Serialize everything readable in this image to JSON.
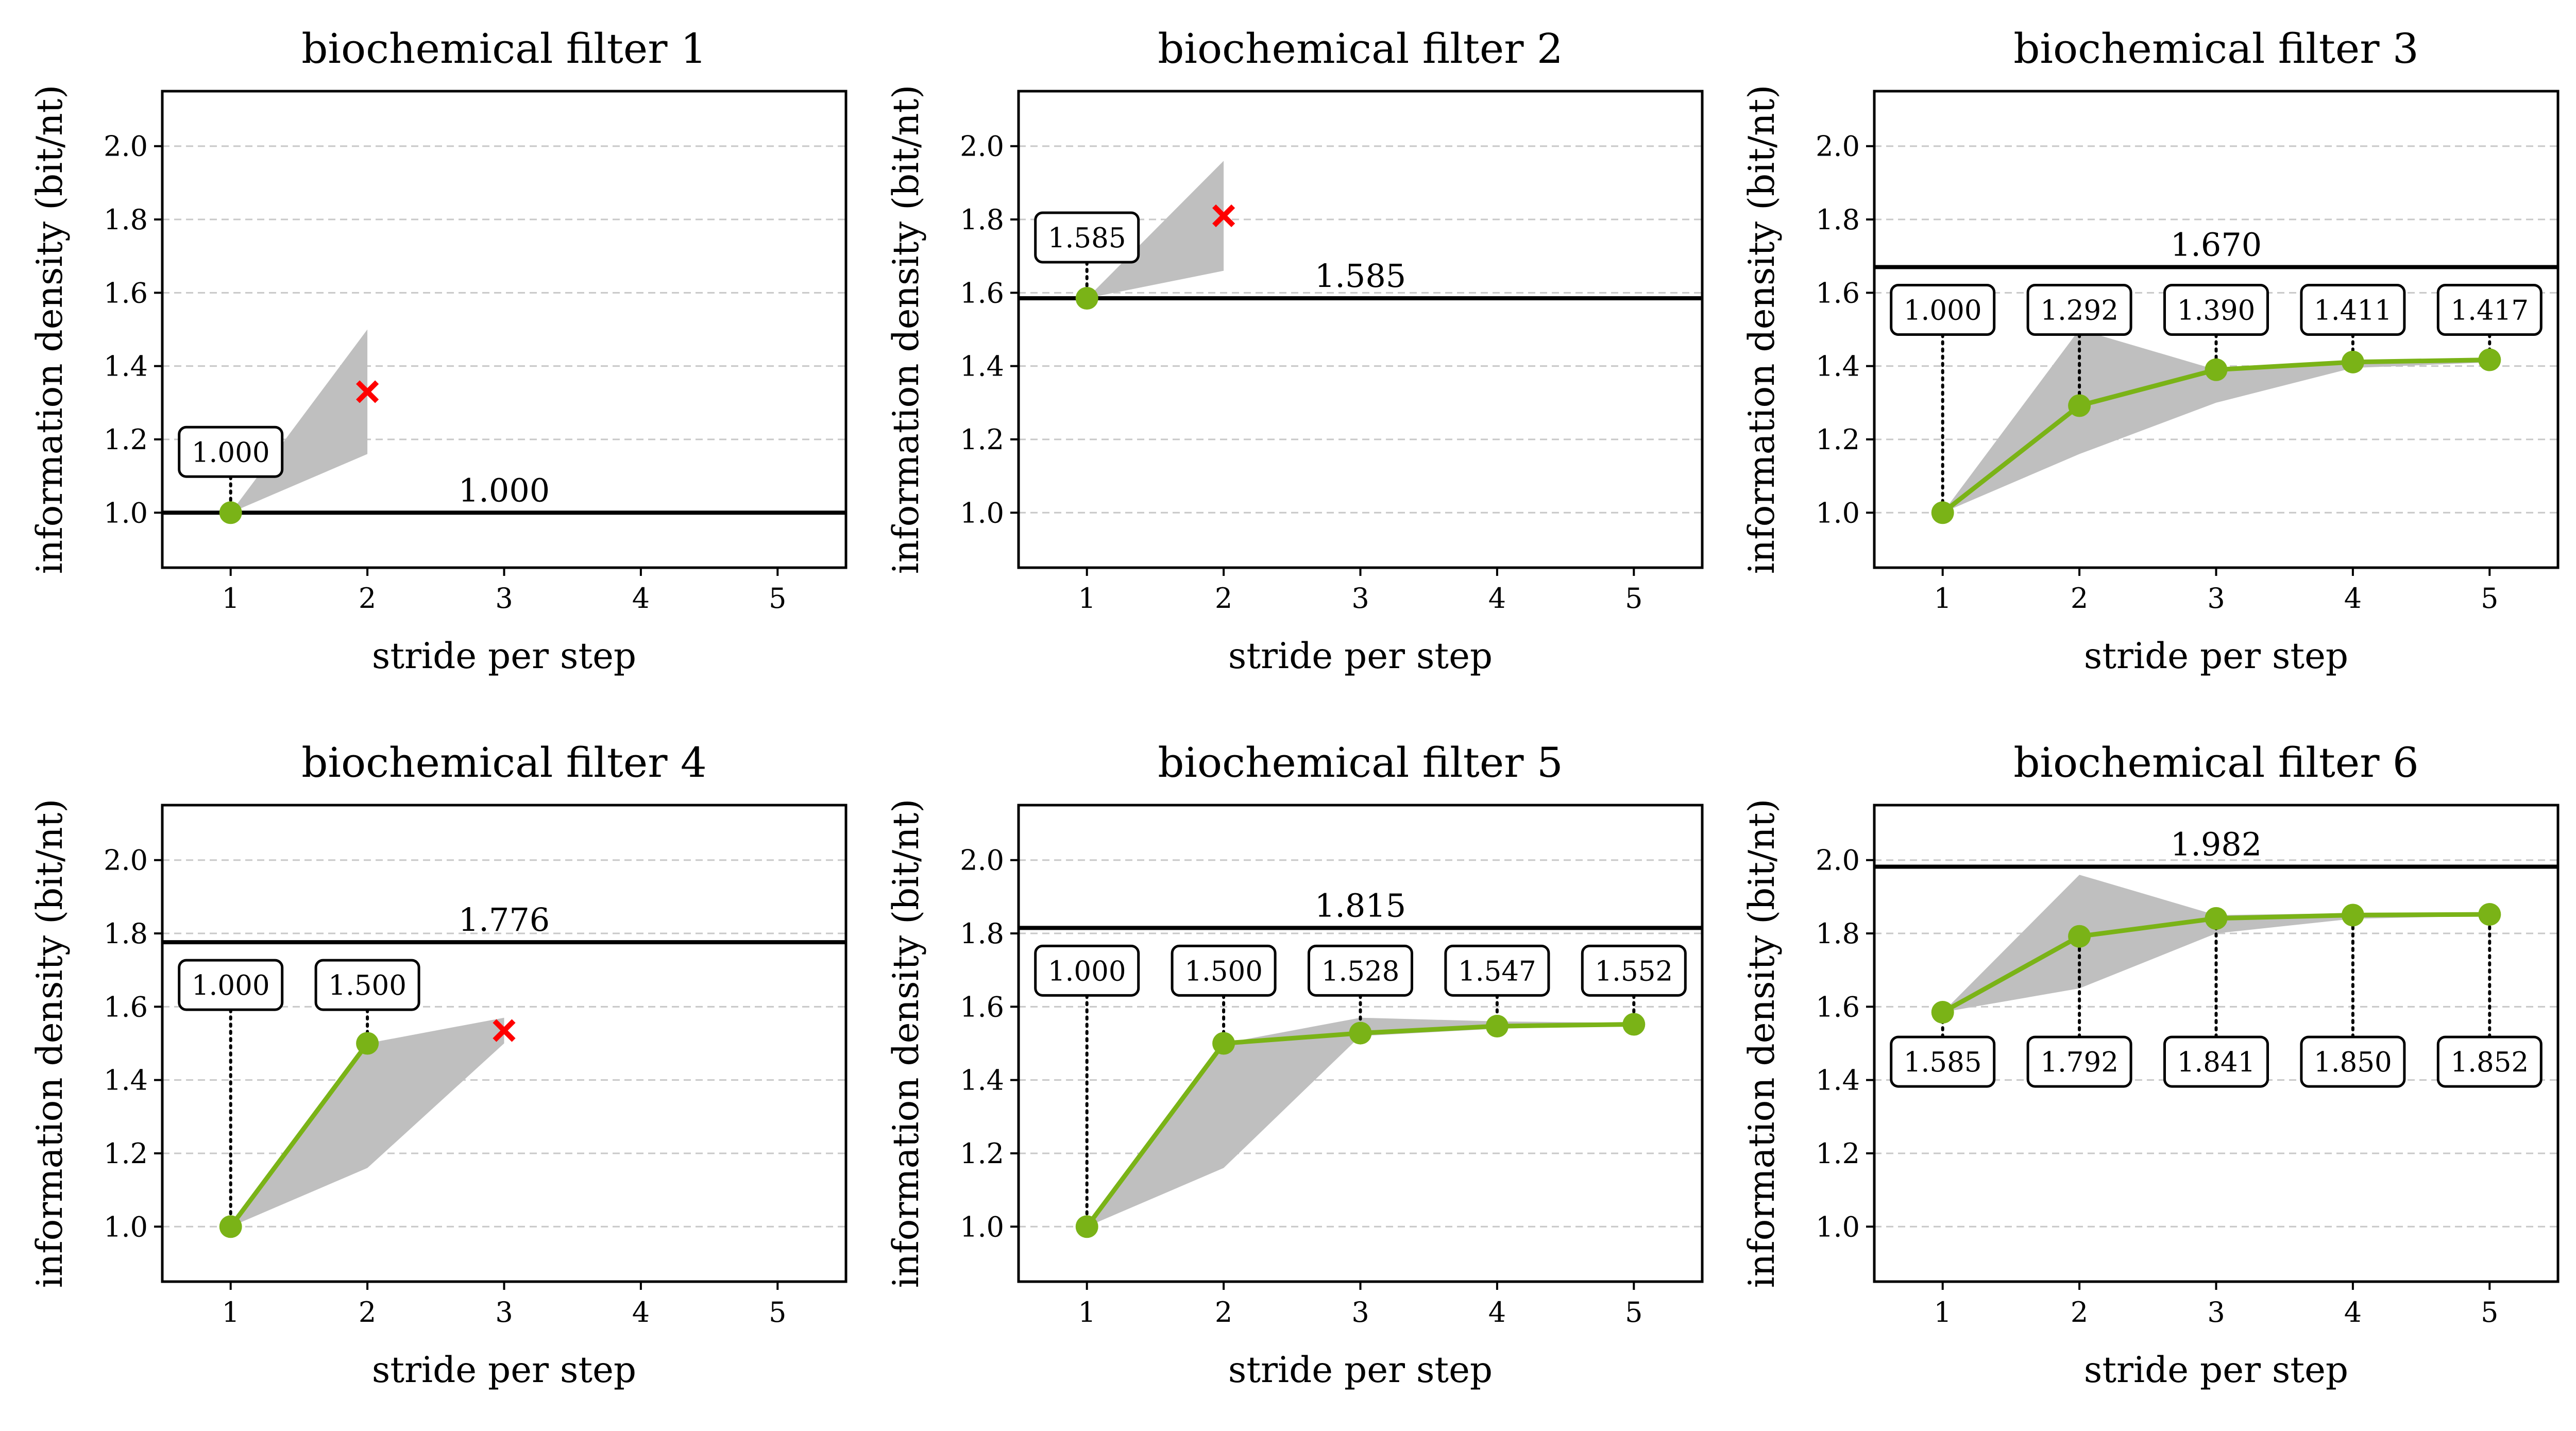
{
  "chart_data": [
    {
      "type": "line",
      "title": "biochemical filter 1",
      "xlabel": "stride per step",
      "ylabel": "information density (bit/nt)",
      "xlim": [
        0.5,
        5.5
      ],
      "ylim": [
        0.85,
        2.15
      ],
      "xticks": [
        1,
        2,
        3,
        4,
        5
      ],
      "yticks": [
        1.0,
        1.2,
        1.4,
        1.6,
        1.8,
        2.0
      ],
      "ytick_labels": [
        "1.0",
        "1.2",
        "1.4",
        "1.6",
        "1.8",
        "2.0"
      ],
      "grid": "horizontal dashed",
      "reference_line": {
        "y": 1.0,
        "label": "1.000"
      },
      "points": [
        {
          "x": 1,
          "y": 1.0,
          "label": "1.000",
          "label_pos": "above"
        }
      ],
      "band": [
        {
          "x": 1,
          "low": 1.0,
          "high": 1.0
        },
        {
          "x": 2,
          "low": 1.16,
          "high": 1.5
        }
      ],
      "rejected": [
        {
          "x": 2,
          "y": 1.33
        }
      ]
    },
    {
      "type": "line",
      "title": "biochemical filter 2",
      "xlabel": "stride per step",
      "ylabel": "information density (bit/nt)",
      "xlim": [
        0.5,
        5.5
      ],
      "ylim": [
        0.85,
        2.15
      ],
      "xticks": [
        1,
        2,
        3,
        4,
        5
      ],
      "yticks": [
        1.0,
        1.2,
        1.4,
        1.6,
        1.8,
        2.0
      ],
      "ytick_labels": [
        "1.0",
        "1.2",
        "1.4",
        "1.6",
        "1.8",
        "2.0"
      ],
      "grid": "horizontal dashed",
      "reference_line": {
        "y": 1.585,
        "label": "1.585"
      },
      "points": [
        {
          "x": 1,
          "y": 1.585,
          "label": "1.585",
          "label_pos": "above"
        }
      ],
      "band": [
        {
          "x": 1,
          "low": 1.585,
          "high": 1.585
        },
        {
          "x": 2,
          "low": 1.66,
          "high": 1.96
        }
      ],
      "rejected": [
        {
          "x": 2,
          "y": 1.81
        }
      ]
    },
    {
      "type": "line",
      "title": "biochemical filter 3",
      "xlabel": "stride per step",
      "ylabel": "information density (bit/nt)",
      "xlim": [
        0.5,
        5.5
      ],
      "ylim": [
        0.85,
        2.15
      ],
      "xticks": [
        1,
        2,
        3,
        4,
        5
      ],
      "yticks": [
        1.0,
        1.2,
        1.4,
        1.6,
        1.8,
        2.0
      ],
      "ytick_labels": [
        "1.0",
        "1.2",
        "1.4",
        "1.6",
        "1.8",
        "2.0"
      ],
      "grid": "horizontal dashed",
      "reference_line": {
        "y": 1.67,
        "label": "1.670"
      },
      "points": [
        {
          "x": 1,
          "y": 1.0,
          "label": "1.000",
          "label_pos": "above"
        },
        {
          "x": 2,
          "y": 1.292,
          "label": "1.292",
          "label_pos": "above"
        },
        {
          "x": 3,
          "y": 1.39,
          "label": "1.390",
          "label_pos": "above"
        },
        {
          "x": 4,
          "y": 1.411,
          "label": "1.411",
          "label_pos": "above"
        },
        {
          "x": 5,
          "y": 1.417,
          "label": "1.417",
          "label_pos": "above"
        }
      ],
      "band": [
        {
          "x": 1,
          "low": 1.0,
          "high": 1.0
        },
        {
          "x": 2,
          "low": 1.16,
          "high": 1.5
        },
        {
          "x": 3,
          "low": 1.3,
          "high": 1.39
        },
        {
          "x": 4,
          "low": 1.395,
          "high": 1.415
        },
        {
          "x": 5,
          "low": 1.41,
          "high": 1.42
        }
      ],
      "rejected": []
    },
    {
      "type": "line",
      "title": "biochemical filter 4",
      "xlabel": "stride per step",
      "ylabel": "information density (bit/nt)",
      "xlim": [
        0.5,
        5.5
      ],
      "ylim": [
        0.85,
        2.15
      ],
      "xticks": [
        1,
        2,
        3,
        4,
        5
      ],
      "yticks": [
        1.0,
        1.2,
        1.4,
        1.6,
        1.8,
        2.0
      ],
      "ytick_labels": [
        "1.0",
        "1.2",
        "1.4",
        "1.6",
        "1.8",
        "2.0"
      ],
      "grid": "horizontal dashed",
      "reference_line": {
        "y": 1.776,
        "label": "1.776"
      },
      "points": [
        {
          "x": 1,
          "y": 1.0,
          "label": "1.000",
          "label_pos": "above"
        },
        {
          "x": 2,
          "y": 1.5,
          "label": "1.500",
          "label_pos": "above"
        }
      ],
      "band": [
        {
          "x": 1,
          "low": 1.0,
          "high": 1.0
        },
        {
          "x": 2,
          "low": 1.16,
          "high": 1.5
        },
        {
          "x": 3,
          "low": 1.5,
          "high": 1.57
        }
      ],
      "rejected": [
        {
          "x": 3,
          "y": 1.535
        }
      ]
    },
    {
      "type": "line",
      "title": "biochemical filter 5",
      "xlabel": "stride per step",
      "ylabel": "information density (bit/nt)",
      "xlim": [
        0.5,
        5.5
      ],
      "ylim": [
        0.85,
        2.15
      ],
      "xticks": [
        1,
        2,
        3,
        4,
        5
      ],
      "yticks": [
        1.0,
        1.2,
        1.4,
        1.6,
        1.8,
        2.0
      ],
      "ytick_labels": [
        "1.0",
        "1.2",
        "1.4",
        "1.6",
        "1.8",
        "2.0"
      ],
      "grid": "horizontal dashed",
      "reference_line": {
        "y": 1.815,
        "label": "1.815"
      },
      "points": [
        {
          "x": 1,
          "y": 1.0,
          "label": "1.000",
          "label_pos": "above"
        },
        {
          "x": 2,
          "y": 1.5,
          "label": "1.500",
          "label_pos": "above"
        },
        {
          "x": 3,
          "y": 1.528,
          "label": "1.528",
          "label_pos": "above"
        },
        {
          "x": 4,
          "y": 1.547,
          "label": "1.547",
          "label_pos": "above"
        },
        {
          "x": 5,
          "y": 1.552,
          "label": "1.552",
          "label_pos": "above"
        }
      ],
      "band": [
        {
          "x": 1,
          "low": 1.0,
          "high": 1.0
        },
        {
          "x": 2,
          "low": 1.16,
          "high": 1.5
        },
        {
          "x": 3,
          "low": 1.52,
          "high": 1.57
        },
        {
          "x": 4,
          "low": 1.54,
          "high": 1.56
        },
        {
          "x": 5,
          "low": 1.548,
          "high": 1.556
        }
      ],
      "rejected": []
    },
    {
      "type": "line",
      "title": "biochemical filter 6",
      "xlabel": "stride per step",
      "ylabel": "information density (bit/nt)",
      "xlim": [
        0.5,
        5.5
      ],
      "ylim": [
        0.85,
        2.15
      ],
      "xticks": [
        1,
        2,
        3,
        4,
        5
      ],
      "yticks": [
        1.0,
        1.2,
        1.4,
        1.6,
        1.8,
        2.0
      ],
      "ytick_labels": [
        "1.0",
        "1.2",
        "1.4",
        "1.6",
        "1.8",
        "2.0"
      ],
      "grid": "horizontal dashed",
      "reference_line": {
        "y": 1.982,
        "label": "1.982"
      },
      "points": [
        {
          "x": 1,
          "y": 1.585,
          "label": "1.585",
          "label_pos": "below"
        },
        {
          "x": 2,
          "y": 1.792,
          "label": "1.792",
          "label_pos": "below"
        },
        {
          "x": 3,
          "y": 1.841,
          "label": "1.841",
          "label_pos": "below"
        },
        {
          "x": 4,
          "y": 1.85,
          "label": "1.850",
          "label_pos": "below"
        },
        {
          "x": 5,
          "y": 1.852,
          "label": "1.852",
          "label_pos": "below"
        }
      ],
      "band": [
        {
          "x": 1,
          "low": 1.585,
          "high": 1.585
        },
        {
          "x": 2,
          "low": 1.65,
          "high": 1.96
        },
        {
          "x": 3,
          "low": 1.8,
          "high": 1.85
        },
        {
          "x": 4,
          "low": 1.84,
          "high": 1.855
        },
        {
          "x": 5,
          "low": 1.848,
          "high": 1.856
        }
      ],
      "rejected": []
    }
  ],
  "colors": {
    "series": "#7ab317",
    "band": "#bfbfbf",
    "rejected": "#ff0000",
    "reference_line": "#000000",
    "grid": "#c8c8c8"
  }
}
